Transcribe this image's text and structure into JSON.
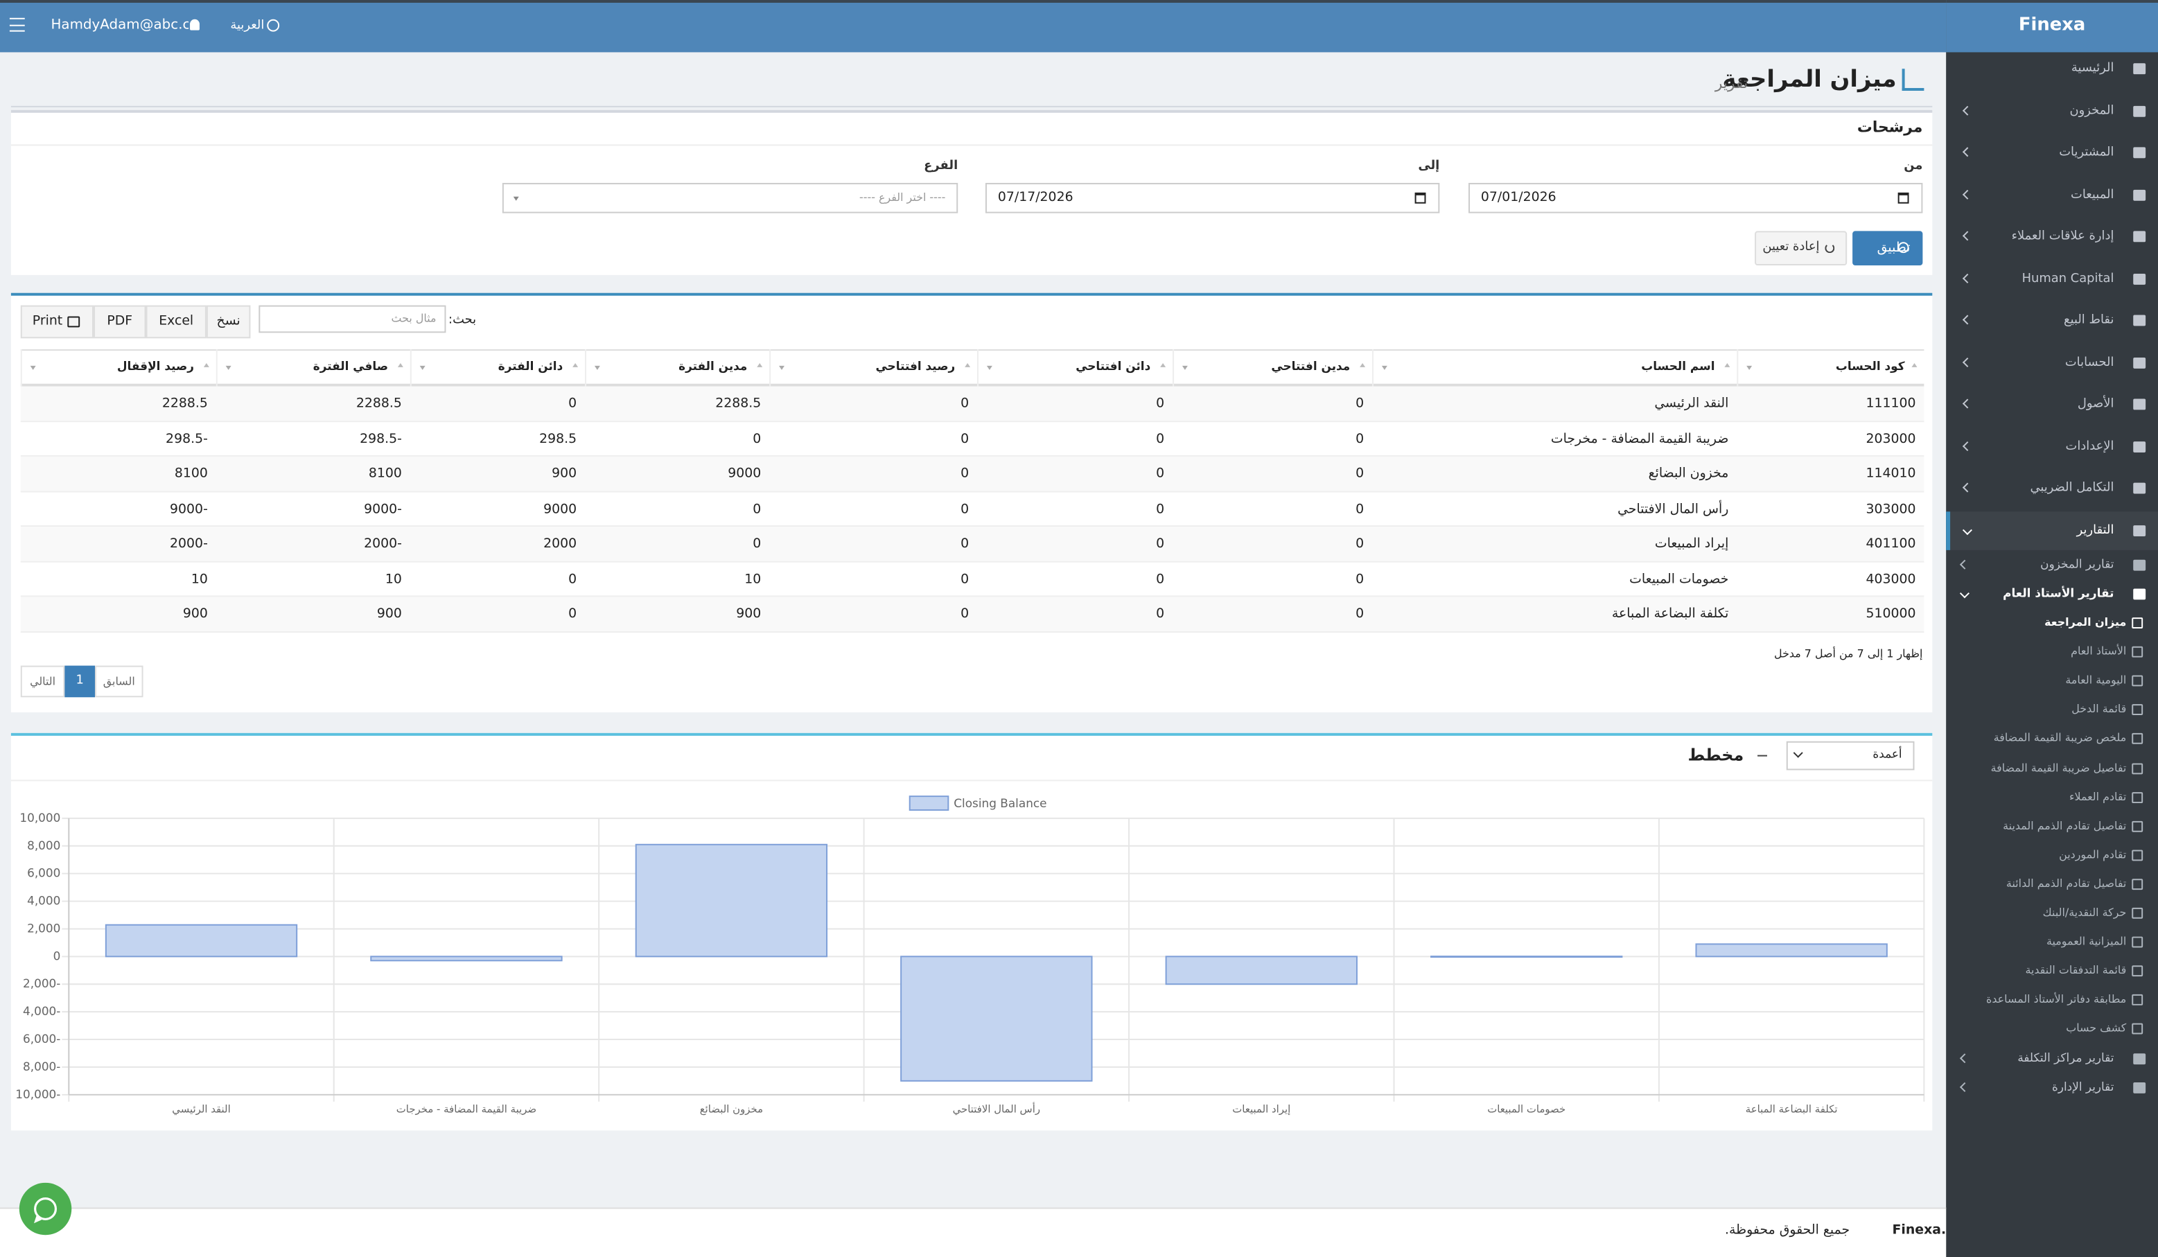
{
  "topbar": {
    "user": "HamdyAdam@abc.co",
    "language": "العربية"
  },
  "sidebar": {
    "brand": "Finexa",
    "items": [
      "الرئيسية",
      "المخزون",
      "المشتريات",
      "المبيعات",
      "إدارة علاقات العملاء",
      "Human Capital",
      "نقاط البيع",
      "الحسابات",
      "الأصول",
      "الإعدادات",
      "التكامل الضريبي",
      "التقارير"
    ],
    "report_groups": [
      "تقارير المخزون",
      "تقارير الأستاذ العام",
      "تقارير مراكز التكلفة",
      "تقارير الإدارة"
    ],
    "gl_reports": [
      "ميزان المراجعة",
      "الأستاذ العام",
      "اليومية العامة",
      "قائمة الدخل",
      "ملخص ضريبة القيمة المضافة",
      "تفاصيل ضريبة القيمة المضافة",
      "تقادم العملاء",
      "تفاصيل تقادم الذمم المدينة",
      "تقادم الموردين",
      "تفاصيل تقادم الذمم الدائنة",
      "حركة النقدية/البنك",
      "الميزانية العمومية",
      "قائمة التدفقات النقدية",
      "مطابقة دفاتر الأستاذ المساعدة",
      "كشف حساب"
    ]
  },
  "header": {
    "title": "ميزان المراجعة",
    "subtitle": "تقرير"
  },
  "filters": {
    "title": "مرشحات",
    "from_label": "من",
    "from": "07/01/2026",
    "to_label": "إلى",
    "to": "07/17/2026",
    "branch_label": "الفرع",
    "branch_placeholder": "---- اختر الفرع ----",
    "apply": "تطبيق",
    "reset": "إعادة تعيين"
  },
  "table": {
    "search_label": "بحث:",
    "search_placeholder": "مثال بحث",
    "buttons": [
      "نسخ",
      "Excel",
      "PDF",
      "Print"
    ],
    "columns": [
      "كود الحساب",
      "اسم الحساب",
      "مدين افتتاحي",
      "دائن افتتاحي",
      "رصيد افتتاحي",
      "مدين الفترة",
      "دائن الفترة",
      "صافي الفترة",
      "رصيد الإقفال"
    ],
    "rows": [
      [
        "111100",
        "النقد الرئيسي",
        "0",
        "0",
        "0",
        "2288.5",
        "0",
        "2288.5",
        "2288.5"
      ],
      [
        "203000",
        "ضريبة القيمة المضافة - مخرجات",
        "0",
        "0",
        "0",
        "0",
        "298.5",
        "298.5-",
        "298.5-"
      ],
      [
        "114010",
        "مخزون البضائع",
        "0",
        "0",
        "0",
        "9000",
        "900",
        "8100",
        "8100"
      ],
      [
        "303000",
        "رأس المال الافتتاحي",
        "0",
        "0",
        "0",
        "0",
        "9000",
        "9000-",
        "9000-"
      ],
      [
        "401100",
        "إيراد المبيعات",
        "0",
        "0",
        "0",
        "0",
        "2000",
        "2000-",
        "2000-"
      ],
      [
        "403000",
        "خصومات المبيعات",
        "0",
        "0",
        "0",
        "10",
        "0",
        "10",
        "10"
      ],
      [
        "510000",
        "تكلفة البضاعة المباعة",
        "0",
        "0",
        "0",
        "900",
        "0",
        "900",
        "900"
      ]
    ],
    "info": "إظهار 1 إلى 7 من أصل 7 مدخل",
    "pagination": {
      "prev": "السابق",
      "page": "1",
      "next": "التالي"
    }
  },
  "chart_panel": {
    "title": "مخطط",
    "chart_type_option": "أعمدة"
  },
  "chart_data": {
    "type": "bar",
    "categories": [
      "النقد الرئيسي",
      "ضريبة القيمة المضافة - مخرجات",
      "مخزون البضائع",
      "رأس المال الافتتاحي",
      "إيراد المبيعات",
      "خصومات المبيعات",
      "تكلفة البضاعة المباعة"
    ],
    "series": [
      {
        "name": "Closing Balance",
        "color": "#c3d4f0",
        "border_color": "#7e9fd8",
        "values": [
          2288.5,
          -298.5,
          8100,
          -9000,
          -2000,
          10,
          900
        ]
      }
    ],
    "ylim": [
      -10000,
      10000
    ],
    "yticks": [
      {
        "value": -10000,
        "label": "10,000-"
      },
      {
        "value": -8000,
        "label": "8,000-"
      },
      {
        "value": -6000,
        "label": "6,000-"
      },
      {
        "value": -4000,
        "label": "4,000-"
      },
      {
        "value": -2000,
        "label": "2,000-"
      },
      0,
      {
        "value": 2000,
        "label": "2,000"
      },
      {
        "value": 4000,
        "label": "4,000"
      },
      {
        "value": 6000,
        "label": "6,000"
      },
      {
        "value": 8000,
        "label": "8,000"
      },
      {
        "value": 10000,
        "label": "10,000"
      }
    ],
    "grid": true,
    "legend": "top"
  },
  "footer": {
    "brand": "Finexa.",
    "text": "جميع الحقوق محفوظة."
  }
}
